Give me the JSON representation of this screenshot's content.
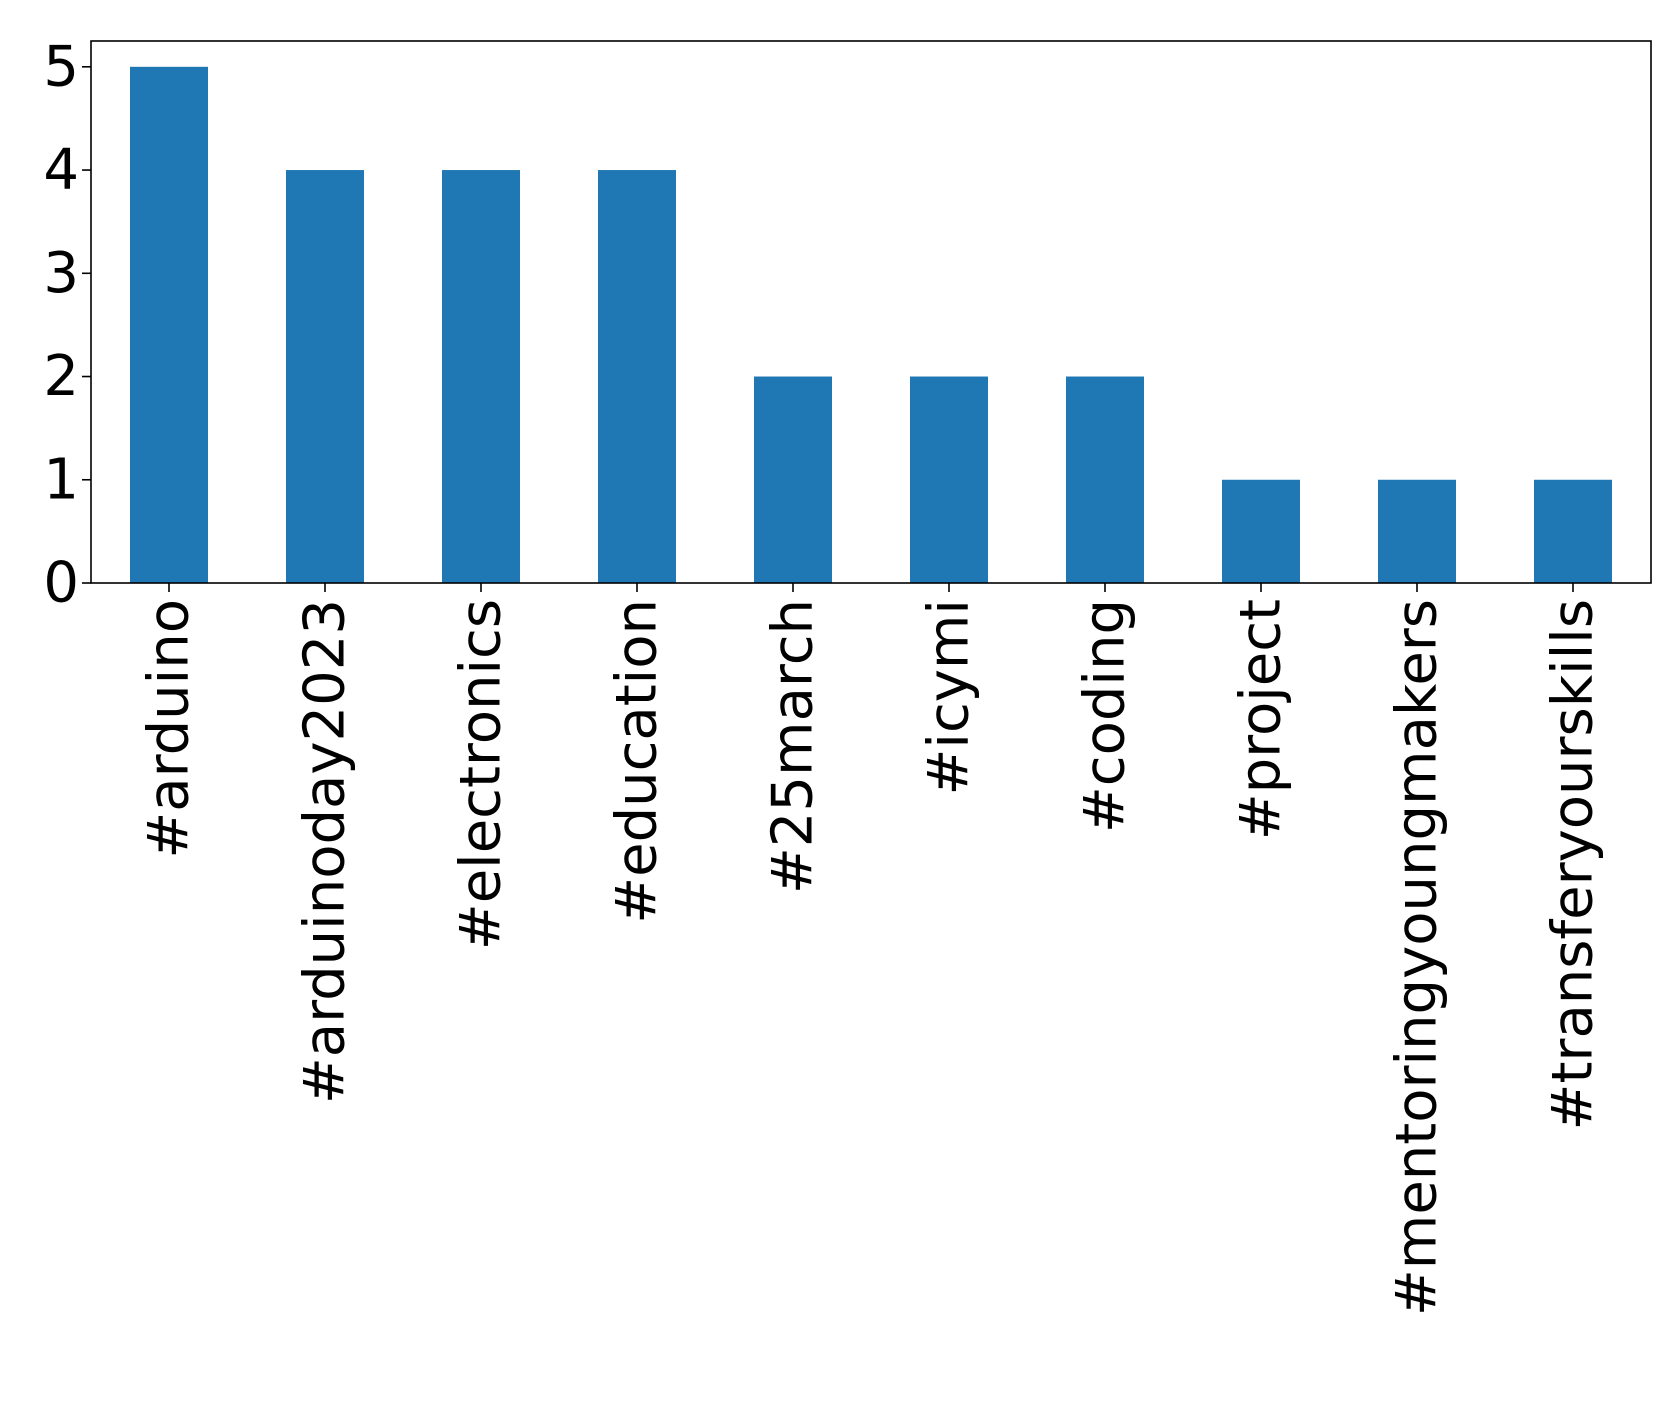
{
  "chart_data": {
    "type": "bar",
    "title": "",
    "xlabel": "",
    "ylabel": "",
    "categories": [
      "#arduino",
      "#arduinoday2023",
      "#electronics",
      "#education",
      "#25march",
      "#icymi",
      "#coding",
      "#project",
      "#mentoringyoungmakers",
      "#transferyourskills"
    ],
    "values": [
      5,
      4,
      4,
      4,
      2,
      2,
      2,
      1,
      1,
      1
    ],
    "ylim": [
      0,
      5.25
    ],
    "yticks": [
      0,
      1,
      2,
      3,
      4,
      5
    ],
    "bar_color": "#1f77b4",
    "grid": false,
    "legend": "none"
  }
}
